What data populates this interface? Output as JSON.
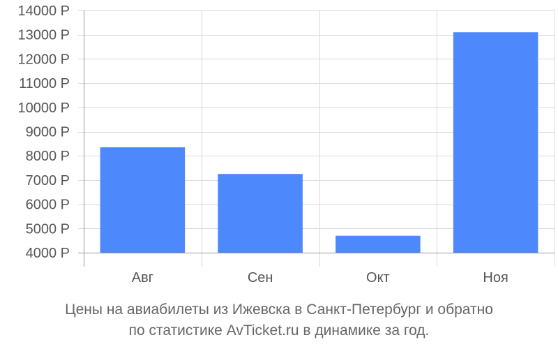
{
  "chart_data": {
    "type": "bar",
    "categories": [
      "Авг",
      "Сен",
      "Окт",
      "Ноя"
    ],
    "values": [
      8350,
      7250,
      4700,
      13100
    ],
    "ylim": [
      4000,
      14000
    ],
    "yticks": [
      4000,
      5000,
      6000,
      7000,
      8000,
      9000,
      10000,
      11000,
      12000,
      13000,
      14000
    ],
    "tick_suffix": " Р",
    "grid": true,
    "bar_color": "#4d88fc",
    "grid_color": "#d9d9d9",
    "axis_color": "#999999"
  },
  "caption": {
    "line1": "Цены на авиабилеты из Ижевска в Санкт-Петербург и обратно",
    "line2": "по статистике AvTicket.ru в динамике за год."
  }
}
